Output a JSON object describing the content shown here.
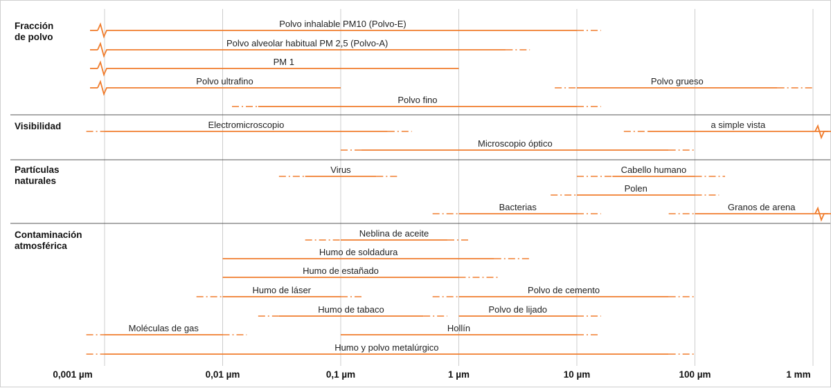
{
  "chart_data": {
    "type": "range-bar",
    "x_scale": "log",
    "x_unit": "µm",
    "x_ticks": [
      {
        "value": 0.001,
        "label": "0,001 µm"
      },
      {
        "value": 0.01,
        "label": "0,01 µm"
      },
      {
        "value": 0.1,
        "label": "0,1 µm"
      },
      {
        "value": 1,
        "label": "1 µm"
      },
      {
        "value": 10,
        "label": "10 µm"
      },
      {
        "value": 100,
        "label": "100 µm"
      },
      {
        "value": 1000,
        "label": "1 mm"
      }
    ],
    "color": "#f07c2c",
    "grid_color": "#cccccc",
    "separator_color": "#555555",
    "groups": [
      {
        "name": "Fracción\nde polvo",
        "bars": [
          {
            "label": "Polvo inhalable PM10 (Polvo-E)",
            "solid": [
              0.001,
              10
            ],
            "dashed_end": 16,
            "break_left": true
          },
          {
            "label": "Polvo alveolar habitual PM 2,5 (Polvo-A)",
            "solid": [
              0.001,
              2.5
            ],
            "dashed_end": 4,
            "break_left": true
          },
          {
            "label": "PM 1",
            "solid": [
              0.001,
              1
            ],
            "break_left": true
          },
          {
            "label": "Polvo ultrafino",
            "solid": [
              0.001,
              0.1
            ],
            "break_left": true
          },
          {
            "label": "Polvo grueso",
            "solid": [
              10,
              500
            ],
            "dashed_start": 6.5,
            "dashed_end": 1000,
            "row_share": true
          },
          {
            "label": "Polvo fino",
            "solid": [
              0.02,
              10
            ],
            "dashed_start": 0.012,
            "dashed_end": 16
          }
        ]
      },
      {
        "name": "Visibilidad",
        "bars": [
          {
            "label": "Electromicroscopio",
            "solid": [
              0.001,
              0.25
            ],
            "dashed_start": 0.0007,
            "dashed_end": 0.4
          },
          {
            "label": "a simple vista",
            "solid": [
              40,
              1000
            ],
            "dashed_start": 25,
            "break_right": true,
            "row_share": true
          },
          {
            "label": "Microscopio óptico",
            "solid": [
              0.15,
              60
            ],
            "dashed_start": 0.1,
            "dashed_end": 100
          }
        ]
      },
      {
        "name": "Partículas\nnaturales",
        "bars": [
          {
            "label": "Virus",
            "solid": [
              0.05,
              0.2
            ],
            "dashed_start": 0.03,
            "dashed_end": 0.3
          },
          {
            "label": "Cabello humano",
            "solid": [
              20,
              100
            ],
            "dashed_start": 10,
            "dashed_end": 180
          },
          {
            "label": "Polen",
            "solid": [
              10,
              100
            ],
            "dashed_start": 6,
            "dashed_end": 160
          },
          {
            "label": "Bacterias",
            "solid": [
              1,
              10
            ],
            "dashed_start": 0.6,
            "dashed_end": 16
          },
          {
            "label": "Granos de arena",
            "solid": [
              100,
              1000
            ],
            "dashed_start": 60,
            "break_right": true,
            "row_share": true
          }
        ]
      },
      {
        "name": "Contaminación\natmosférica",
        "bars": [
          {
            "label": "Neblina de aceite",
            "solid": [
              0.1,
              0.8
            ],
            "dashed_start": 0.05,
            "dashed_end": 1.2
          },
          {
            "label": "Humo de soldadura",
            "solid": [
              0.01,
              2
            ],
            "dashed_end": 4
          },
          {
            "label": "Humo de estañado",
            "solid": [
              0.01,
              1
            ],
            "dashed_end": 2.2
          },
          {
            "label": "Humo de láser",
            "solid": [
              0.01,
              0.1
            ],
            "dashed_start": 0.006,
            "dashed_end": 0.15
          },
          {
            "label": "Polvo de cemento",
            "solid": [
              1,
              60
            ],
            "dashed_start": 0.6,
            "dashed_end": 100,
            "row_share": true
          },
          {
            "label": "Humo de tabaco",
            "solid": [
              0.03,
              0.5
            ],
            "dashed_start": 0.02,
            "dashed_end": 0.8
          },
          {
            "label": "Polvo de lijado",
            "solid": [
              1,
              10
            ],
            "dashed_end": 16,
            "row_share": true
          },
          {
            "label": "Moléculas de gas",
            "solid": [
              0.001,
              0.01
            ],
            "dashed_start": 0.0007,
            "dashed_end": 0.016
          },
          {
            "label": "Hollín",
            "solid": [
              0.1,
              10
            ],
            "dashed_end": 15,
            "row_share": true
          },
          {
            "label": "Humo y polvo metalúrgico",
            "solid": [
              0.001,
              60
            ],
            "dashed_start": 0.0007,
            "dashed_end": 100
          }
        ]
      }
    ]
  }
}
